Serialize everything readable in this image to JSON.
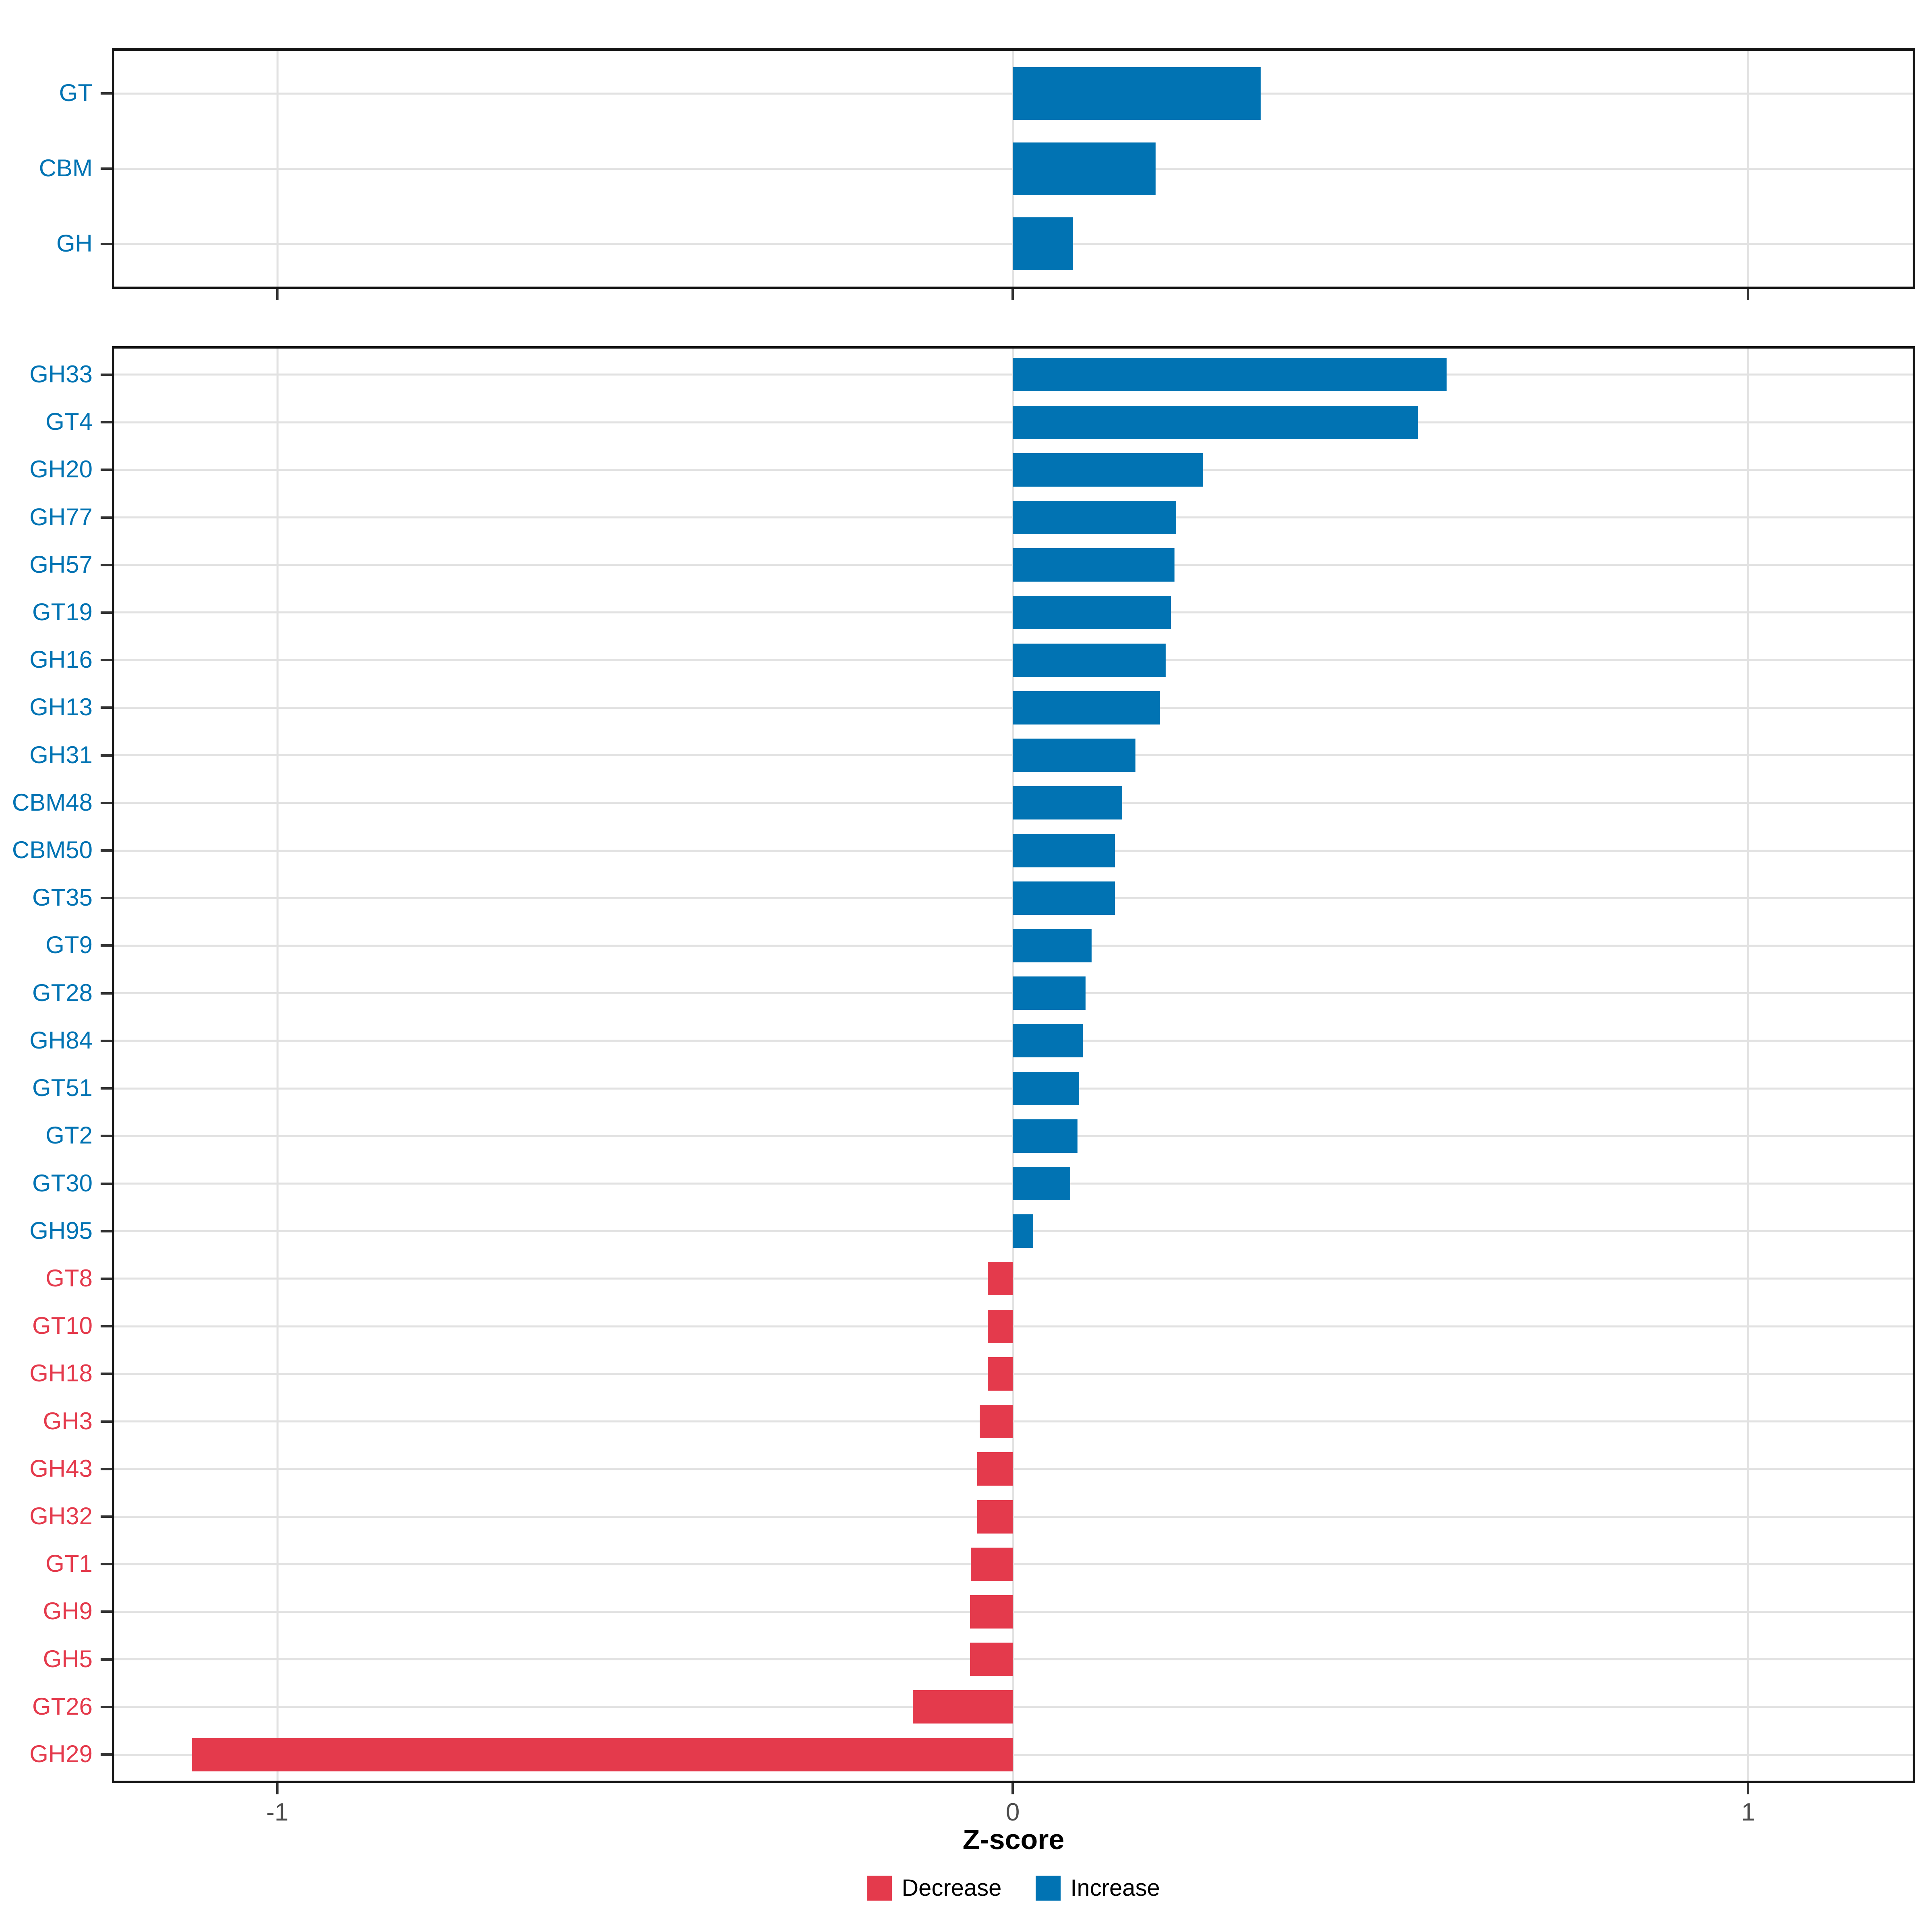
{
  "axis": {
    "xlabel": "Z-score",
    "xlim": [
      -1.225,
      1.227
    ],
    "ticks": [
      {
        "value": -1,
        "label": "-1"
      },
      {
        "value": 0,
        "label": "0"
      },
      {
        "value": 1,
        "label": "1"
      }
    ]
  },
  "legend": {
    "items": [
      {
        "key": "decrease",
        "label": "Decrease",
        "color": "#E43A4C"
      },
      {
        "key": "increase",
        "label": "Increase",
        "color": "#0173B3"
      }
    ]
  },
  "chart_data": [
    {
      "type": "bar",
      "panel": "top",
      "orientation": "horizontal",
      "xlabel": "Z-score",
      "xlim": [
        -1.225,
        1.227
      ],
      "x_ticks": [
        -1,
        0,
        1
      ],
      "grid": true,
      "legend_position": "bottom",
      "categories": [
        "GT",
        "CBM",
        "GH"
      ],
      "values": [
        0.337,
        0.194,
        0.082
      ],
      "directions": [
        "Increase",
        "Increase",
        "Increase"
      ]
    },
    {
      "type": "bar",
      "panel": "bottom",
      "orientation": "horizontal",
      "xlabel": "Z-score",
      "xlim": [
        -1.225,
        1.227
      ],
      "x_ticks": [
        -1,
        0,
        1
      ],
      "grid": true,
      "legend_position": "bottom",
      "categories": [
        "GH33",
        "GT4",
        "GH20",
        "GH77",
        "GH57",
        "GT19",
        "GH16",
        "GH13",
        "GH31",
        "CBM48",
        "CBM50",
        "GT35",
        "GT9",
        "GT28",
        "GH84",
        "GT51",
        "GT2",
        "GT30",
        "GH95",
        "GT8",
        "GT10",
        "GH18",
        "GH3",
        "GH43",
        "GH32",
        "GT1",
        "GH9",
        "GH5",
        "GT26",
        "GH29"
      ],
      "values": [
        0.59,
        0.551,
        0.259,
        0.222,
        0.22,
        0.215,
        0.208,
        0.2,
        0.167,
        0.149,
        0.139,
        0.139,
        0.107,
        0.099,
        0.095,
        0.09,
        0.088,
        0.078,
        0.028,
        -0.034,
        -0.034,
        -0.034,
        -0.045,
        -0.048,
        -0.048,
        -0.057,
        -0.058,
        -0.058,
        -0.136,
        -1.116
      ],
      "directions": [
        "Increase",
        "Increase",
        "Increase",
        "Increase",
        "Increase",
        "Increase",
        "Increase",
        "Increase",
        "Increase",
        "Increase",
        "Increase",
        "Increase",
        "Increase",
        "Increase",
        "Increase",
        "Increase",
        "Increase",
        "Increase",
        "Increase",
        "Decrease",
        "Decrease",
        "Decrease",
        "Decrease",
        "Decrease",
        "Decrease",
        "Decrease",
        "Decrease",
        "Decrease",
        "Decrease",
        "Decrease"
      ]
    }
  ]
}
